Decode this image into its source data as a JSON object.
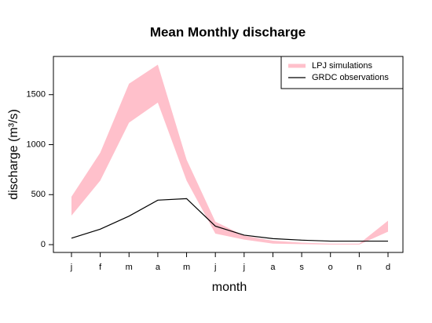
{
  "chart_data": {
    "type": "band-line",
    "title": "Mean Monthly discharge",
    "x_label": "month",
    "y_label": "discharge (m³/s)",
    "categories": [
      "j",
      "f",
      "m",
      "a",
      "m",
      "j",
      "j",
      "a",
      "s",
      "o",
      "n",
      "d"
    ],
    "series": [
      {
        "name": "LPJ simulations",
        "color": "#ffc0cb",
        "upper": [
          480,
          920,
          1610,
          1800,
          850,
          230,
          90,
          40,
          20,
          10,
          10,
          240
        ],
        "lower": [
          290,
          640,
          1220,
          1420,
          640,
          110,
          50,
          10,
          5,
          0,
          0,
          130
        ]
      },
      {
        "name": "GRDC observations",
        "color": "#000000",
        "values": [
          65,
          155,
          285,
          445,
          460,
          185,
          95,
          60,
          45,
          35,
          35,
          35
        ]
      }
    ],
    "ylim": [
      -78,
      1882
    ],
    "yticks": [
      0,
      500,
      1000,
      1500
    ],
    "legend": "topright"
  }
}
